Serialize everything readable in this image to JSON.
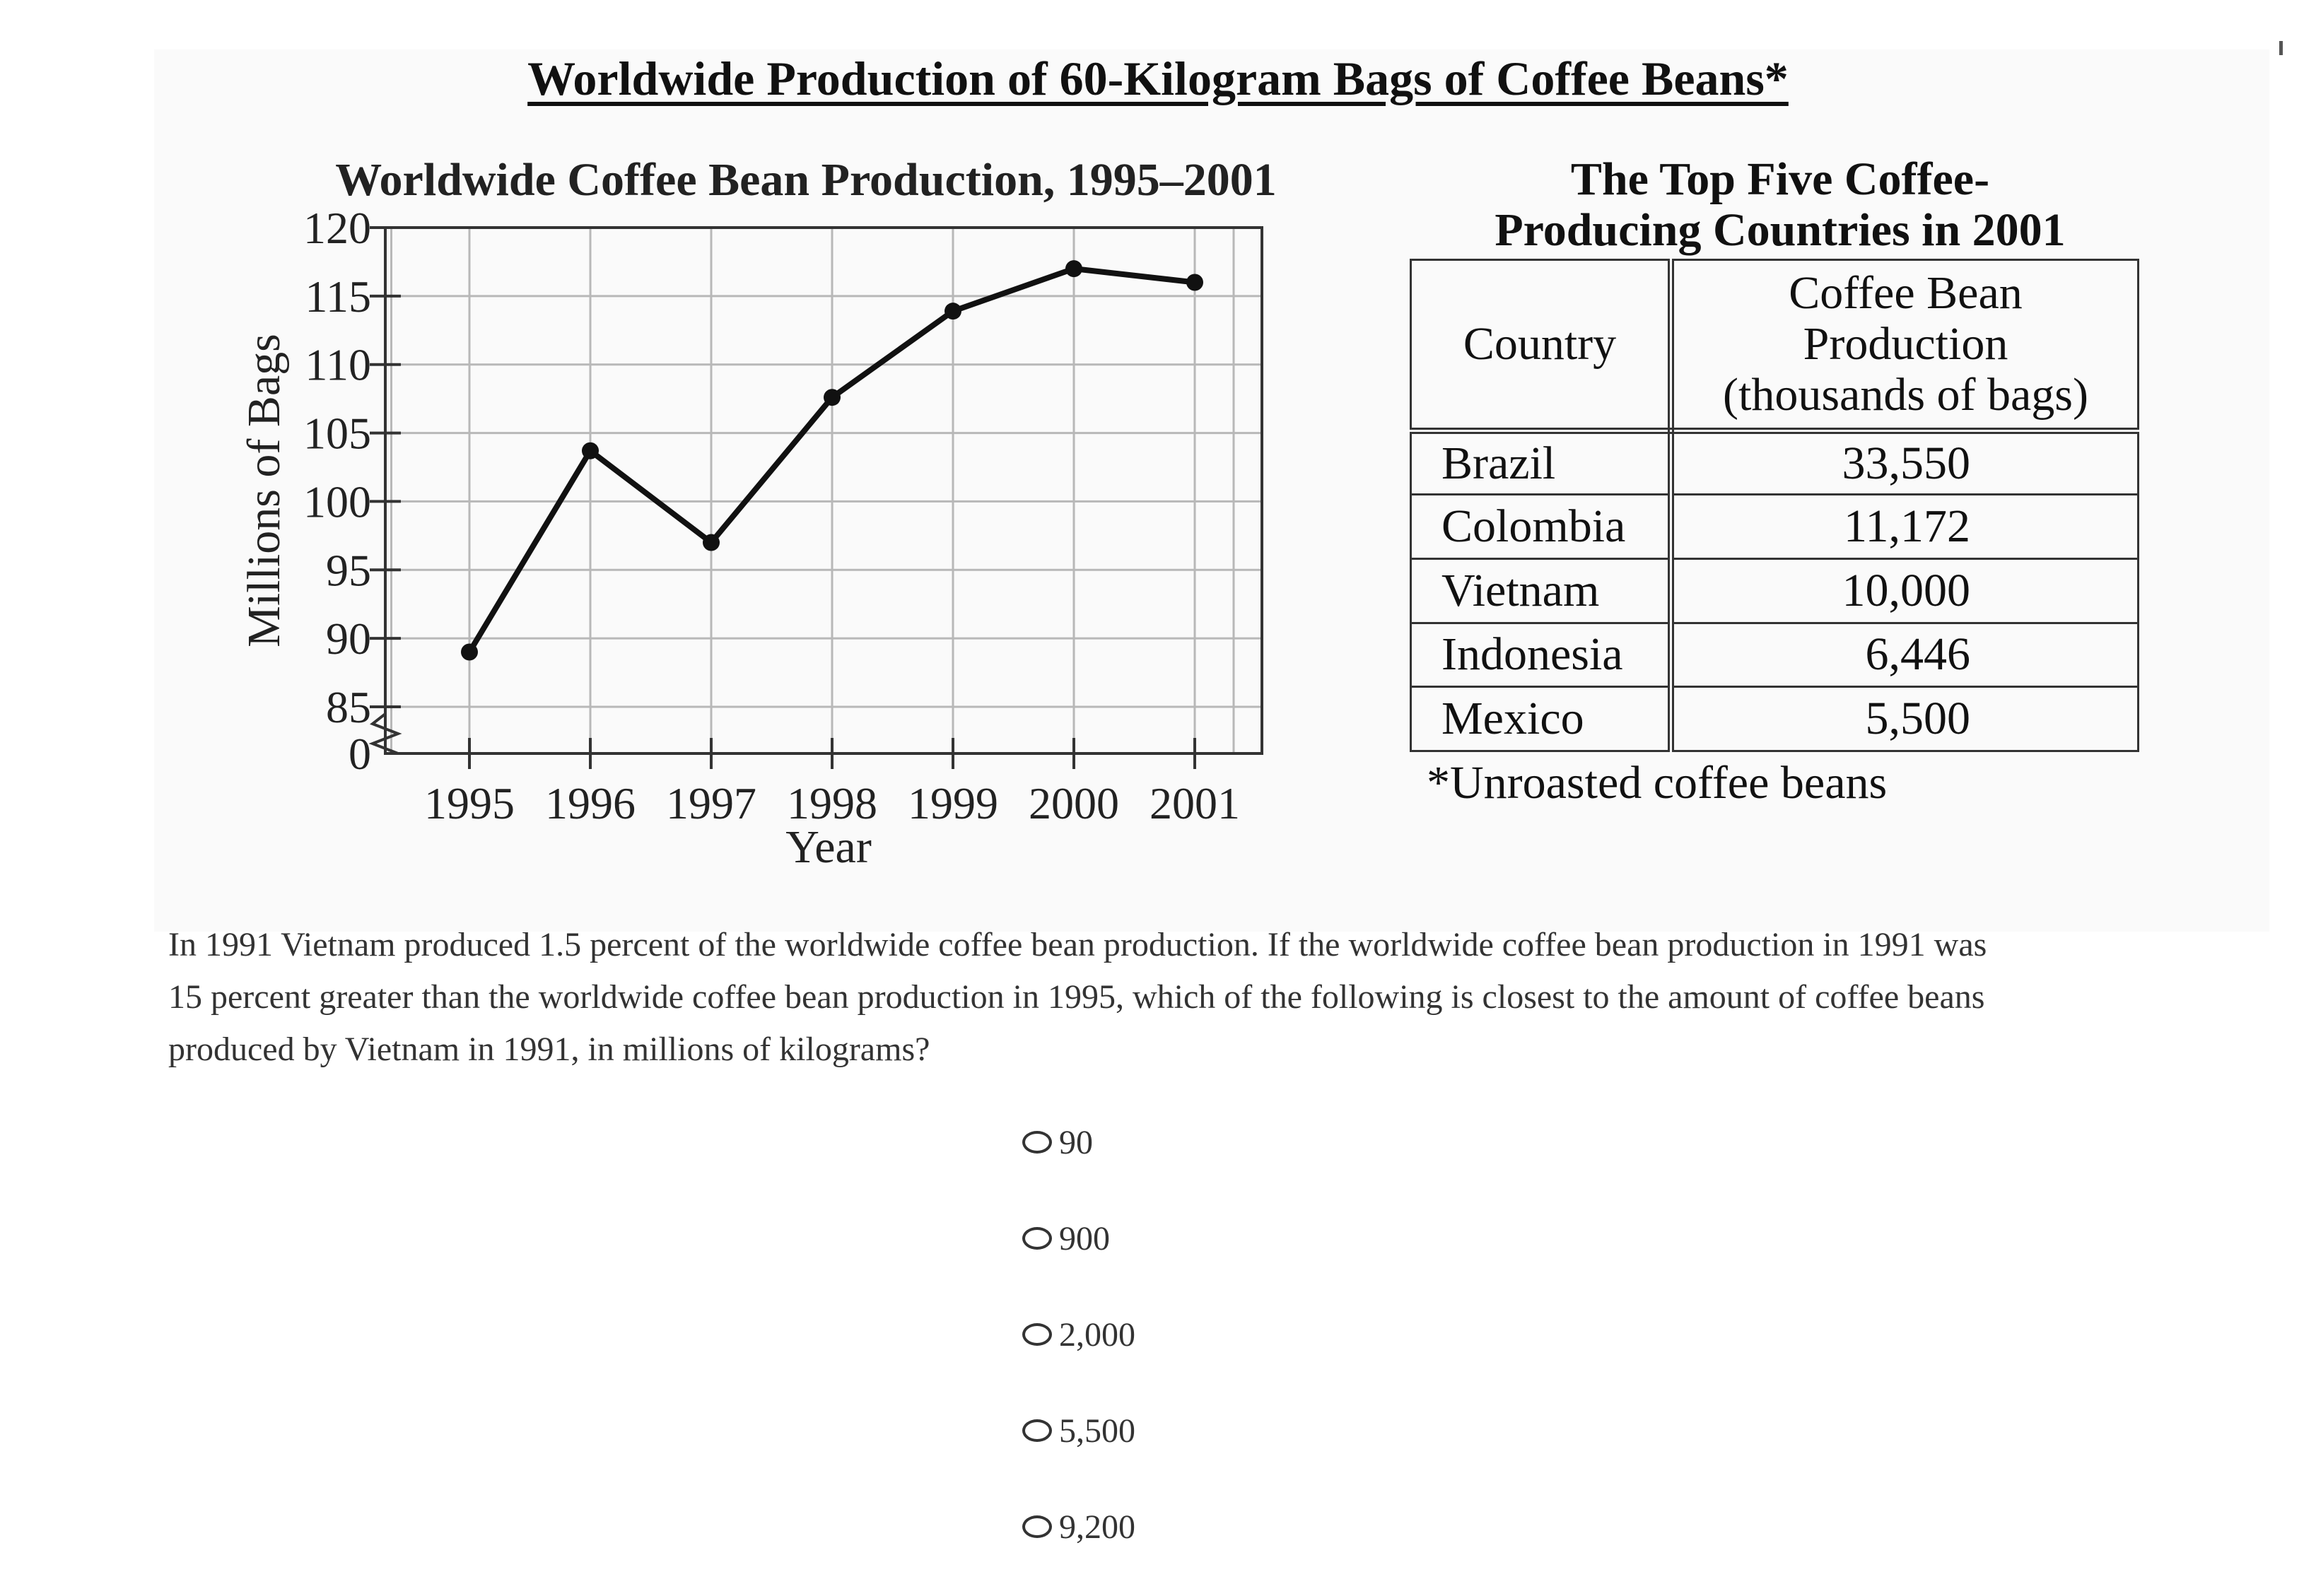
{
  "figure": {
    "main_title": "Worldwide Production of 60-Kilogram Bags of Coffee Beans*",
    "footnote": "*Unroasted coffee beans"
  },
  "chart_data": {
    "type": "line",
    "title": "Worldwide Coffee Bean Production, 1995–2001",
    "xlabel": "Year",
    "ylabel": "Millions of Bags",
    "categories": [
      "1995",
      "1996",
      "1997",
      "1998",
      "1999",
      "2000",
      "2001"
    ],
    "values": [
      89,
      103.7,
      97,
      107.6,
      113.9,
      117,
      116
    ],
    "y_ticks": [
      85,
      90,
      95,
      100,
      105,
      110,
      115,
      120
    ],
    "y_zero_label": "0",
    "ylim": [
      85,
      120
    ],
    "y_axis_break": true,
    "grid": true,
    "line_color": "#111111"
  },
  "table": {
    "title_line1": "The Top Five Coffee-",
    "title_line2": "Producing Countries in 2001",
    "header_country": "Country",
    "header_value_line1": "Coffee Bean",
    "header_value_line2": "Production",
    "header_value_line3": "(thousands of bags)",
    "rows": [
      {
        "country": "Brazil",
        "value": "33,550"
      },
      {
        "country": "Colombia",
        "value": "11,172"
      },
      {
        "country": "Vietnam",
        "value": "10,000"
      },
      {
        "country": "Indonesia",
        "value": "6,446"
      },
      {
        "country": "Mexico",
        "value": "5,500"
      }
    ]
  },
  "question": {
    "line1": "In 1991 Vietnam produced 1.5 percent of the worldwide coffee bean production. If the worldwide coffee bean production in 1991 was",
    "line2": "15 percent greater than the worldwide coffee bean production in 1995, which of the following is closest to the amount of coffee beans",
    "line3": "produced by Vietnam in 1991, in millions of kilograms?"
  },
  "choices": [
    "90",
    "900",
    "2,000",
    "5,500",
    "9,200"
  ]
}
